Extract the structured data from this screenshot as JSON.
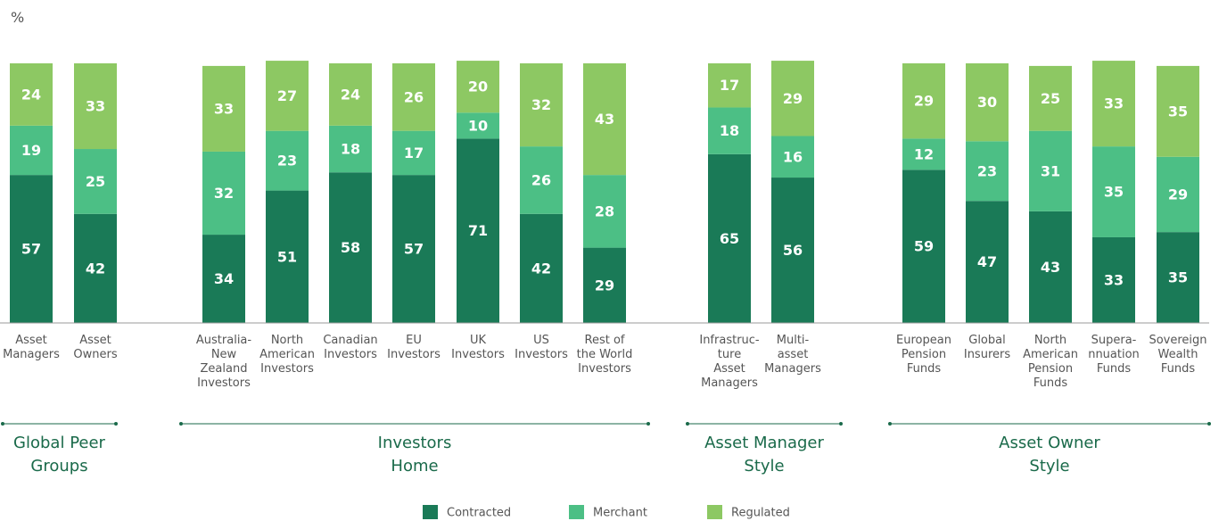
{
  "chart_data": {
    "type": "stacked_bar",
    "unit": "%",
    "categories": [
      "Asset\nManagers",
      "Asset\nOwners",
      "Australia-\nNew\nZealand\nInvestors",
      "North\nAmerican\nInvestors",
      "Canadian\nInvestors",
      "EU\nInvestors",
      "UK\nInvestors",
      "US\nInvestors",
      "Rest of\nthe World\nInvestors",
      "Infrastruc-\nture\nAsset\nManagers",
      "Multi-\nasset\nManagers",
      "European\nPension\nFunds",
      "Global\nInsurers",
      "North\nAmerican\nPension\nFunds",
      "Supera-\nnnuation\nFunds",
      "Sovereign\nWealth\nFunds"
    ],
    "series": [
      {
        "name": "Contracted",
        "color": "#1a7a57",
        "values": [
          57,
          42,
          34,
          51,
          58,
          57,
          71,
          42,
          29,
          65,
          56,
          59,
          47,
          43,
          33,
          35
        ]
      },
      {
        "name": "Merchant",
        "color": "#4cbf85",
        "values": [
          19,
          25,
          32,
          23,
          18,
          17,
          10,
          26,
          28,
          18,
          16,
          12,
          23,
          31,
          35,
          29
        ]
      },
      {
        "name": "Regulated",
        "color": "#8dc863",
        "values": [
          24,
          33,
          33,
          27,
          24,
          26,
          20,
          32,
          43,
          17,
          29,
          29,
          30,
          25,
          33,
          35
        ]
      }
    ],
    "groups": [
      "Global Peer\nGroups",
      "Investors\nHome",
      "Asset Manager\nStyle",
      "Asset Owner\nStyle"
    ],
    "ylim": [
      0,
      100
    ]
  }
}
